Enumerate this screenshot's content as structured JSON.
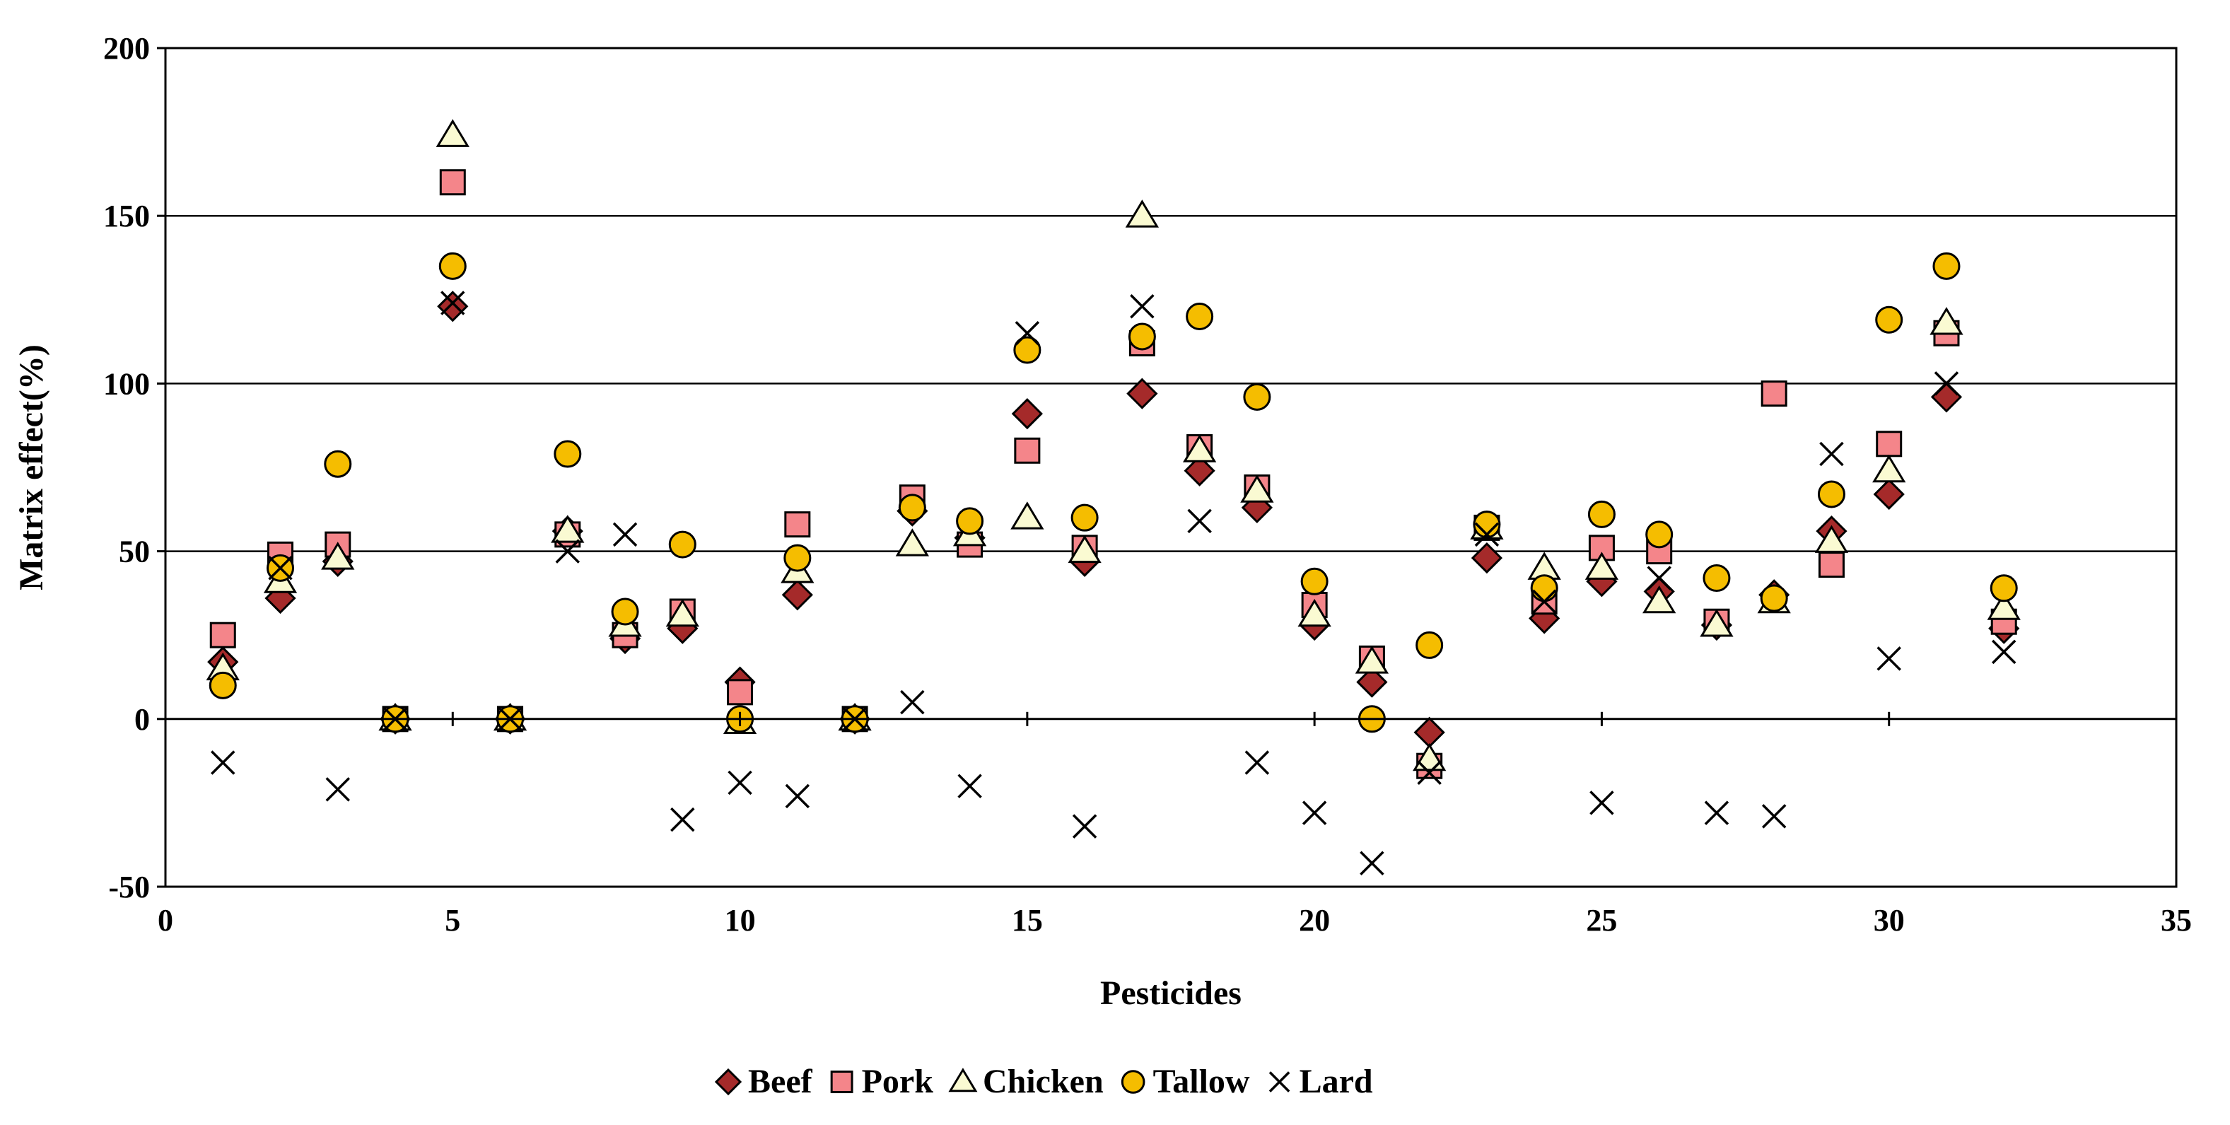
{
  "chart_data": {
    "type": "scatter",
    "title": "",
    "xlabel": "Pesticides",
    "ylabel": "Matrix effect(%)",
    "xlim": [
      0,
      35
    ],
    "ylim": [
      -50,
      200
    ],
    "xticks": [
      0,
      5,
      10,
      15,
      20,
      25,
      30,
      35
    ],
    "yticks": [
      -50,
      0,
      50,
      100,
      150,
      200
    ],
    "x": [
      1,
      2,
      3,
      4,
      5,
      6,
      7,
      8,
      9,
      10,
      11,
      12,
      13,
      14,
      15,
      16,
      17,
      18,
      19,
      20,
      21,
      22,
      23,
      24,
      25,
      26,
      27,
      28,
      29,
      30,
      31,
      32
    ],
    "legend_position": "bottom",
    "series": [
      {
        "name": "Beef",
        "marker": "diamond",
        "values": [
          17,
          36,
          47,
          0,
          123,
          0,
          56,
          24,
          27,
          11,
          37,
          0,
          62,
          54,
          91,
          47,
          97,
          74,
          63,
          28,
          11,
          -4,
          48,
          30,
          41,
          38,
          28,
          37,
          56,
          67,
          96,
          27
        ]
      },
      {
        "name": "Pork",
        "marker": "square",
        "values": [
          25,
          49,
          52,
          0,
          160,
          0,
          55,
          25,
          32,
          8,
          58,
          0,
          66,
          52,
          80,
          51,
          112,
          81,
          69,
          34,
          18,
          -14,
          57,
          35,
          51,
          50,
          29,
          97,
          46,
          82,
          115,
          29
        ]
      },
      {
        "name": "Chicken",
        "marker": "triangle",
        "values": [
          15,
          41,
          48,
          0,
          174,
          0,
          56,
          28,
          31,
          -1,
          44,
          0,
          52,
          55,
          60,
          50,
          150,
          80,
          68,
          31,
          17,
          -12,
          57,
          45,
          45,
          35,
          28,
          35,
          53,
          74,
          118,
          33
        ]
      },
      {
        "name": "Tallow",
        "marker": "circle",
        "values": [
          10,
          45,
          76,
          0,
          135,
          0,
          79,
          32,
          52,
          0,
          48,
          0,
          63,
          59,
          110,
          60,
          114,
          120,
          96,
          41,
          0,
          22,
          58,
          39,
          61,
          55,
          42,
          36,
          67,
          119,
          135,
          39
        ]
      },
      {
        "name": "Lard",
        "marker": "x",
        "values": [
          -13,
          45,
          -21,
          0,
          124,
          0,
          50,
          55,
          -30,
          -19,
          -23,
          0,
          5,
          -20,
          115,
          -32,
          123,
          59,
          -13,
          -28,
          -43,
          -16,
          55,
          35,
          -25,
          42,
          -28,
          -29,
          79,
          18,
          100,
          20
        ]
      }
    ]
  },
  "colors": {
    "beef_fill": "#a52a2a",
    "pork_fill": "#f4858a",
    "chicken_fill": "#fafad2",
    "tallow_fill": "#f5bd00",
    "lard_stroke": "#000000"
  }
}
